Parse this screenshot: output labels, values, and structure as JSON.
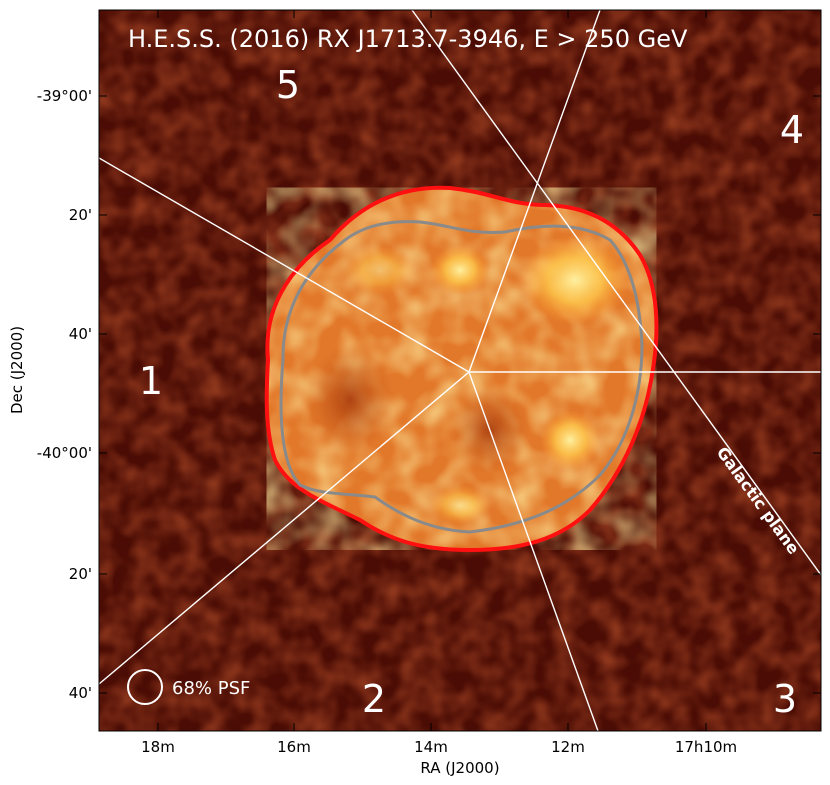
{
  "title": "H.E.S.S. (2016) RX J1713.7-3946, E > 250 GeV",
  "x_axis": {
    "label": "RA (J2000)",
    "ticks": [
      "18m",
      "16m",
      "14m",
      "12m",
      "17h10m"
    ]
  },
  "y_axis": {
    "label": "Dec (J2000)",
    "ticks": [
      "-39°00'",
      "20'",
      "40'",
      "-40°00'",
      "20'",
      "40'"
    ]
  },
  "regions": [
    "1",
    "2",
    "3",
    "4",
    "5"
  ],
  "psf_label": "68% PSF",
  "galactic_plane_label": "Galactic plane",
  "colors": {
    "background": "#4a0c04",
    "emission_outer": "#e0761e",
    "emission_bright": "#ffd45a",
    "contour_outer": "#ff1010",
    "contour_inner": "#8a8a8a",
    "lines": "#ffffff"
  }
}
